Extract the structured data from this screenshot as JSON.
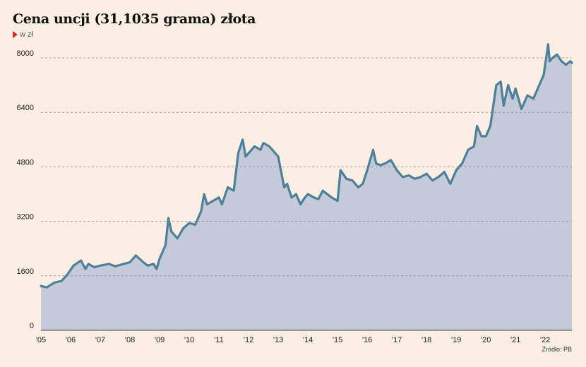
{
  "title": "Cena uncji (31,1035 grama) złota",
  "unit": "w zł",
  "source": "Źródło: PB",
  "colors": {
    "background": "#fbeee2",
    "area_fill": "#c3cad9",
    "line": "#4f7f99",
    "grid": "#8a8a8a",
    "unit_marker": "#d7262b"
  },
  "chart_data": {
    "type": "area",
    "title": "Cena uncji (31,1035 grama) złota",
    "ylabel": "w zł",
    "xlabel": "",
    "ylim": [
      0,
      8000
    ],
    "xlim": [
      2005.0,
      2022.9
    ],
    "yticks": [
      0,
      1600,
      3200,
      4800,
      6400,
      8000
    ],
    "xticks": [
      {
        "value": 2005,
        "label": "'05"
      },
      {
        "value": 2006,
        "label": "'06"
      },
      {
        "value": 2007,
        "label": "'07"
      },
      {
        "value": 2008,
        "label": "'08"
      },
      {
        "value": 2009,
        "label": "'09"
      },
      {
        "value": 2010,
        "label": "'10"
      },
      {
        "value": 2011,
        "label": "'11"
      },
      {
        "value": 2012,
        "label": "'12"
      },
      {
        "value": 2013,
        "label": "'13"
      },
      {
        "value": 2014,
        "label": "'14"
      },
      {
        "value": 2015,
        "label": "'15"
      },
      {
        "value": 2016,
        "label": "'16"
      },
      {
        "value": 2017,
        "label": "'17"
      },
      {
        "value": 2018,
        "label": "'18"
      },
      {
        "value": 2019,
        "label": "'19"
      },
      {
        "value": 2020,
        "label": "'20"
      },
      {
        "value": 2021,
        "label": "'21"
      },
      {
        "value": 2022,
        "label": "'22"
      }
    ],
    "grid": "horizontal dashed",
    "series": [
      {
        "x": [
          2005.0,
          2005.2,
          2005.45,
          2005.7,
          2005.9,
          2006.1,
          2006.35,
          2006.5,
          2006.6,
          2006.8,
          2007.0,
          2007.3,
          2007.5,
          2007.8,
          2008.0,
          2008.2,
          2008.45,
          2008.6,
          2008.8,
          2008.9,
          2009.0,
          2009.1,
          2009.2,
          2009.3,
          2009.4,
          2009.6,
          2009.8,
          2010.0,
          2010.2,
          2010.4,
          2010.5,
          2010.6,
          2010.8,
          2011.0,
          2011.1,
          2011.3,
          2011.5,
          2011.65,
          2011.8,
          2011.9,
          2012.0,
          2012.2,
          2012.4,
          2012.5,
          2012.7,
          2012.9,
          2013.0,
          2013.2,
          2013.3,
          2013.45,
          2013.6,
          2013.75,
          2013.9,
          2014.0,
          2014.2,
          2014.35,
          2014.5,
          2014.8,
          2015.0,
          2015.1,
          2015.3,
          2015.5,
          2015.7,
          2015.85,
          2016.0,
          2016.2,
          2016.3,
          2016.45,
          2016.6,
          2016.8,
          2017.0,
          2017.2,
          2017.4,
          2017.6,
          2017.8,
          2018.0,
          2018.2,
          2018.4,
          2018.6,
          2018.8,
          2019.0,
          2019.2,
          2019.4,
          2019.6,
          2019.7,
          2019.85,
          2020.0,
          2020.15,
          2020.25,
          2020.35,
          2020.5,
          2020.6,
          2020.75,
          2020.9,
          2021.0,
          2021.2,
          2021.4,
          2021.6,
          2021.8,
          2021.95,
          2022.1,
          2022.15,
          2022.25,
          2022.4,
          2022.55,
          2022.7,
          2022.85,
          2022.9
        ],
        "y": [
          1300,
          1260,
          1400,
          1450,
          1650,
          1900,
          2050,
          1800,
          1950,
          1850,
          1900,
          1950,
          1880,
          1950,
          2000,
          2200,
          2000,
          1900,
          1950,
          1800,
          2100,
          2300,
          2500,
          3300,
          2900,
          2700,
          3000,
          3150,
          3100,
          3500,
          4000,
          3700,
          3800,
          3900,
          3700,
          4200,
          4100,
          5200,
          5600,
          5100,
          5200,
          5400,
          5300,
          5500,
          5400,
          5200,
          5100,
          4200,
          4300,
          3900,
          4000,
          3700,
          3900,
          4000,
          3900,
          3850,
          4100,
          3900,
          3800,
          4700,
          4450,
          4400,
          4200,
          4300,
          4700,
          5300,
          4900,
          4850,
          4900,
          5000,
          4700,
          4500,
          4550,
          4450,
          4500,
          4600,
          4400,
          4500,
          4650,
          4300,
          4700,
          4900,
          5300,
          5400,
          6000,
          5700,
          5700,
          6000,
          6600,
          7200,
          7300,
          6600,
          7200,
          6800,
          7100,
          6500,
          6900,
          6800,
          7200,
          7500,
          8400,
          7900,
          8000,
          8100,
          7900,
          7800,
          7900,
          7850
        ]
      }
    ]
  }
}
